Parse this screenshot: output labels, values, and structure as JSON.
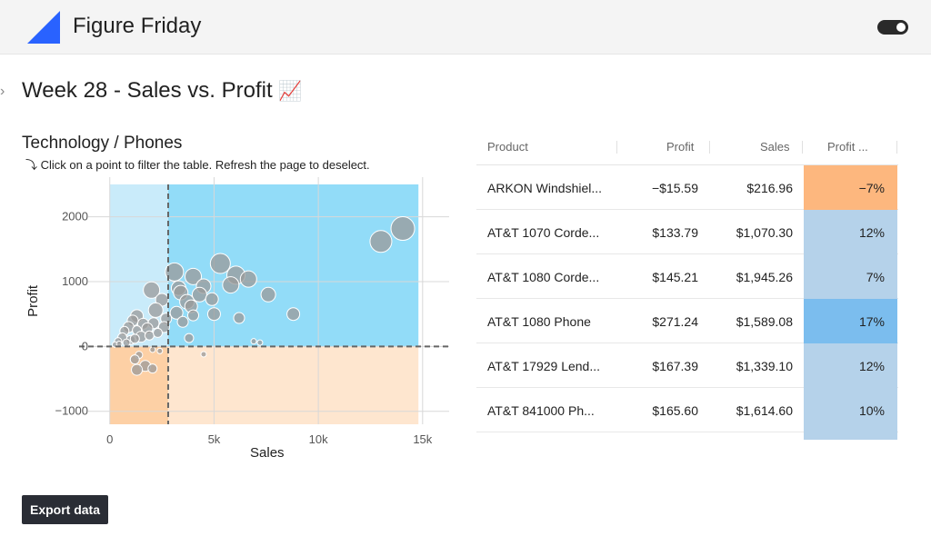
{
  "app": {
    "title": "Figure Friday"
  },
  "page": {
    "title": "Week 28 - Sales vs. Profit",
    "title_emoji": "📈"
  },
  "chart_panel": {
    "title": "Technology / Phones",
    "hint": "⤵ Click on a point to filter the table. Refresh the page to deselect."
  },
  "chart_data": {
    "type": "scatter",
    "xlabel": "Sales",
    "ylabel": "Profit",
    "xlim": [
      -600,
      15400
    ],
    "ylim": [
      -1200,
      2500
    ],
    "x_ticks": [
      0,
      5000,
      10000,
      15000
    ],
    "x_tick_labels": [
      "0",
      "5k",
      "10k",
      "15k"
    ],
    "y_ticks": [
      -1000,
      0,
      1000,
      2000
    ],
    "y_tick_labels": [
      "−1000",
      "0",
      "1000",
      "2000"
    ],
    "median_lines": {
      "x": 2800,
      "y": 0
    },
    "quadrant_colors": {
      "top_left": "#c9ebfa",
      "top_right": "#92dcf8",
      "bottom_left": "#fdd0a5",
      "bottom_right": "#fee6cf"
    },
    "point_color": "#9a9a9a",
    "points": [
      [
        14050,
        1820,
        13
      ],
      [
        13000,
        1620,
        12
      ],
      [
        3100,
        1150,
        10
      ],
      [
        5300,
        1280,
        11
      ],
      [
        6050,
        1100,
        10
      ],
      [
        4000,
        1080,
        9
      ],
      [
        6650,
        1040,
        9
      ],
      [
        5800,
        950,
        9
      ],
      [
        3300,
        900,
        8
      ],
      [
        4500,
        930,
        8
      ],
      [
        2000,
        870,
        9
      ],
      [
        7600,
        800,
        8
      ],
      [
        3400,
        830,
        8
      ],
      [
        4300,
        800,
        8
      ],
      [
        2500,
        720,
        7
      ],
      [
        3700,
        690,
        8
      ],
      [
        4900,
        730,
        7
      ],
      [
        3900,
        620,
        7
      ],
      [
        2200,
        560,
        8
      ],
      [
        3200,
        520,
        7
      ],
      [
        1300,
        470,
        7
      ],
      [
        8800,
        500,
        7
      ],
      [
        5000,
        500,
        7
      ],
      [
        4000,
        480,
        6
      ],
      [
        6200,
        440,
        6
      ],
      [
        2700,
        430,
        6
      ],
      [
        1100,
        400,
        6
      ],
      [
        1600,
        350,
        6
      ],
      [
        2100,
        360,
        6
      ],
      [
        3500,
        380,
        6
      ],
      [
        900,
        300,
        6
      ],
      [
        1800,
        280,
        6
      ],
      [
        2600,
        300,
        6
      ],
      [
        1300,
        250,
        5
      ],
      [
        700,
        240,
        5
      ],
      [
        1500,
        150,
        6
      ],
      [
        1000,
        100,
        5
      ],
      [
        1900,
        170,
        5
      ],
      [
        600,
        140,
        5
      ],
      [
        400,
        80,
        4
      ],
      [
        1200,
        120,
        5
      ],
      [
        3800,
        130,
        5
      ],
      [
        2300,
        210,
        5
      ],
      [
        250,
        30,
        3
      ],
      [
        450,
        40,
        3
      ],
      [
        800,
        60,
        4
      ],
      [
        6900,
        80,
        3
      ],
      [
        7200,
        60,
        3
      ],
      [
        2050,
        -50,
        3
      ],
      [
        2400,
        -70,
        3
      ],
      [
        1400,
        -130,
        4
      ],
      [
        1200,
        -200,
        5
      ],
      [
        1700,
        -300,
        6
      ],
      [
        1300,
        -360,
        6
      ],
      [
        2050,
        -340,
        5
      ],
      [
        4500,
        -120,
        3
      ]
    ]
  },
  "table": {
    "headers": {
      "product": "Product",
      "profit": "Profit",
      "sales": "Sales",
      "profit_pct": "Profit ..."
    },
    "rows": [
      {
        "product": "ARKON Windshiel...",
        "profit": "−$15.59",
        "sales": "$216.96",
        "profit_pct": "−7%",
        "color": "#fdb77e"
      },
      {
        "product": "AT&T 1070 Corde...",
        "profit": "$133.79",
        "sales": "$1,070.30",
        "profit_pct": "12%",
        "color": "#b5d2ea"
      },
      {
        "product": "AT&T 1080 Corde...",
        "profit": "$145.21",
        "sales": "$1,945.26",
        "profit_pct": "7%",
        "color": "#b5d2ea"
      },
      {
        "product": "AT&T 1080 Phone",
        "profit": "$271.24",
        "sales": "$1,589.08",
        "profit_pct": "17%",
        "color": "#7bbdee"
      },
      {
        "product": "AT&T 17929 Lend...",
        "profit": "$167.39",
        "sales": "$1,339.10",
        "profit_pct": "12%",
        "color": "#b5d2ea"
      },
      {
        "product": "AT&T 841000 Ph...",
        "profit": "$165.60",
        "sales": "$1,614.60",
        "profit_pct": "10%",
        "color": "#b5d2ea"
      }
    ]
  },
  "export": {
    "label": "Export data"
  },
  "colors": {
    "accent": "#2962ff",
    "button_bg": "#2a2d35"
  }
}
